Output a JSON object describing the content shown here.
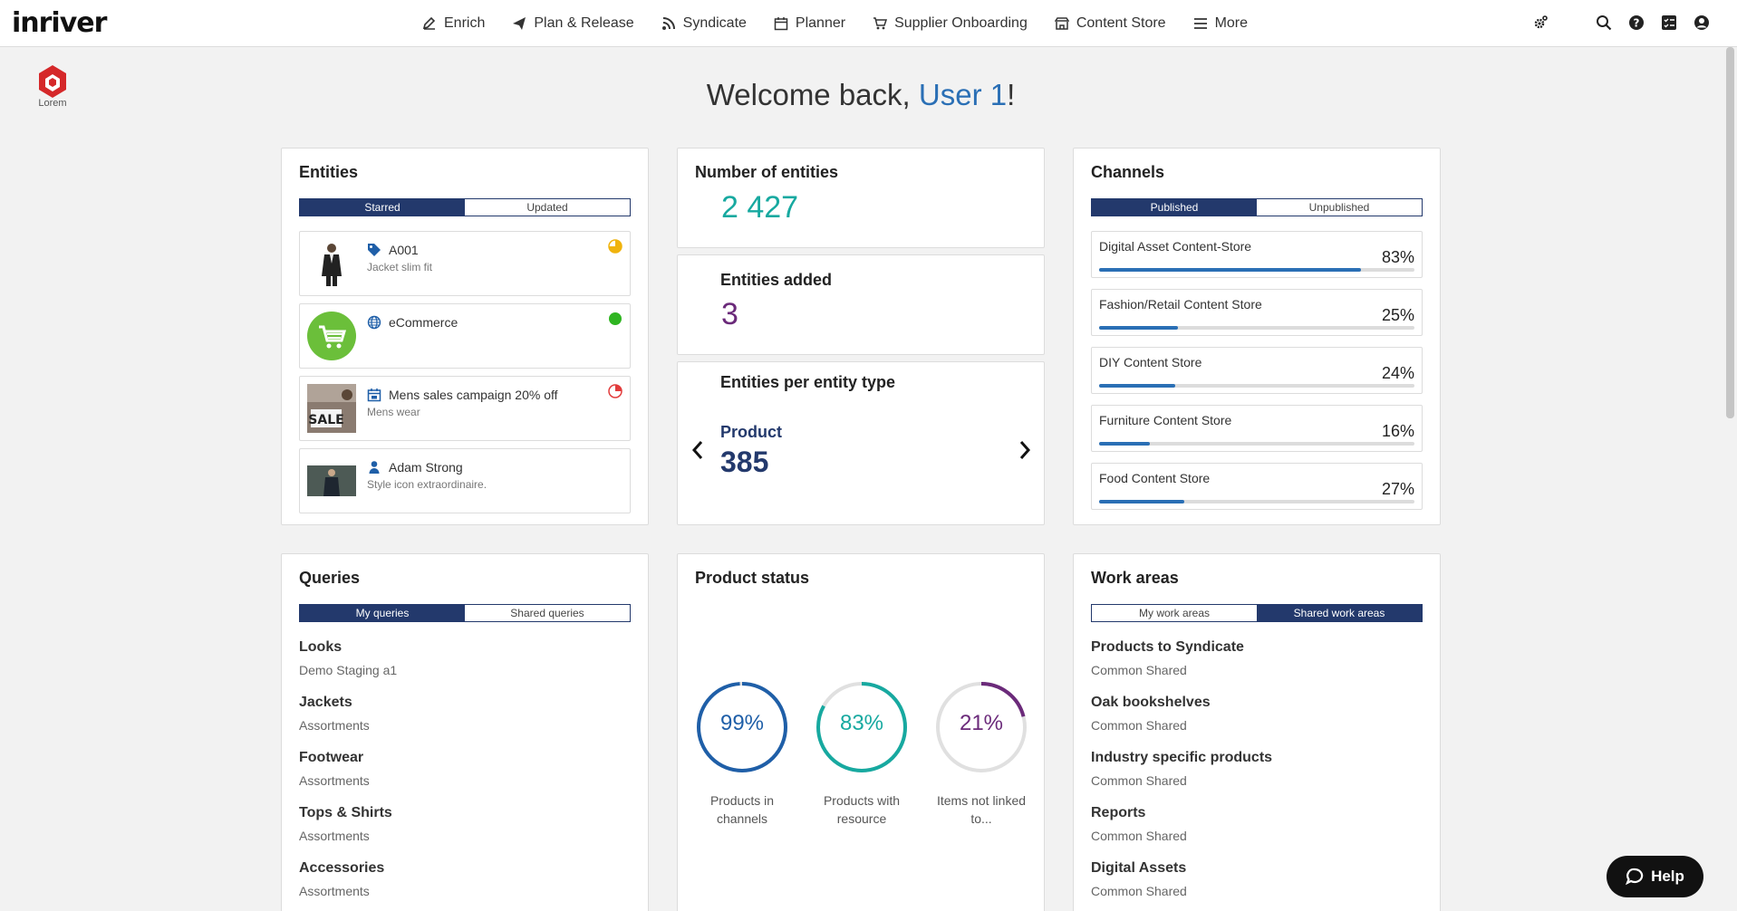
{
  "app": {
    "logo": "inriver"
  },
  "nav": [
    {
      "label": "Enrich",
      "icon": "edit-icon"
    },
    {
      "label": "Plan & Release",
      "icon": "paper-plane-icon"
    },
    {
      "label": "Syndicate",
      "icon": "rss-icon"
    },
    {
      "label": "Planner",
      "icon": "calendar-icon"
    },
    {
      "label": "Supplier Onboarding",
      "icon": "cart-icon"
    },
    {
      "label": "Content Store",
      "icon": "store-icon"
    },
    {
      "label": "More",
      "icon": "menu-icon"
    }
  ],
  "brand": {
    "label": "Lorem"
  },
  "welcome": {
    "prefix": "Welcome back, ",
    "user": "User 1",
    "suffix": "!"
  },
  "entities": {
    "title": "Entities",
    "tabs": [
      "Starred",
      "Updated"
    ],
    "items": [
      {
        "name": "A001",
        "sub": "Jacket slim fit",
        "icon": "tag-icon",
        "status": "partial-pie-icon"
      },
      {
        "name": "eCommerce",
        "sub": "",
        "icon": "globe-icon",
        "status": "green-dot-icon"
      },
      {
        "name": "Mens sales campaign 20% off",
        "sub": "Mens wear",
        "icon": "calendar-icon",
        "status": "red-pie-icon",
        "thumb": "SALE"
      },
      {
        "name": "Adam Strong",
        "sub": "Style icon extraordinaire.",
        "icon": "person-icon",
        "status": ""
      }
    ]
  },
  "stats": {
    "num_entities_label": "Number of entities",
    "num_entities": "2 427",
    "added_label": "Entities added",
    "added": "3",
    "per_type_label": "Entities per entity type",
    "per_type_name": "Product",
    "per_type_value": "385"
  },
  "channels": {
    "title": "Channels",
    "tabs": [
      "Published",
      "Unpublished"
    ],
    "items": [
      {
        "name": "Digital Asset Content-Store",
        "pct": "83%",
        "value": 0.83
      },
      {
        "name": "Fashion/Retail Content Store",
        "pct": "25%",
        "value": 0.25
      },
      {
        "name": "DIY Content Store",
        "pct": "24%",
        "value": 0.24
      },
      {
        "name": "Furniture Content Store",
        "pct": "16%",
        "value": 0.16
      },
      {
        "name": "Food Content Store",
        "pct": "27%",
        "value": 0.27
      }
    ]
  },
  "queries": {
    "title": "Queries",
    "tabs": [
      "My queries",
      "Shared queries"
    ],
    "items": [
      {
        "name": "Looks",
        "sub": "Demo Staging a1"
      },
      {
        "name": "Jackets",
        "sub": "Assortments"
      },
      {
        "name": "Footwear",
        "sub": "Assortments"
      },
      {
        "name": "Tops & Shirts",
        "sub": "Assortments"
      },
      {
        "name": "Accessories",
        "sub": "Assortments"
      }
    ]
  },
  "product_status": {
    "title": "Product status",
    "rings": [
      {
        "pct": "99%",
        "value": 0.99,
        "label": "Products in channels",
        "color": "#1f5fa8"
      },
      {
        "pct": "83%",
        "value": 0.83,
        "label": "Products with resource",
        "color": "#17a9a0"
      },
      {
        "pct": "21%",
        "value": 0.21,
        "label": "Items not linked to...",
        "color": "#6b2a7a"
      }
    ]
  },
  "work_areas": {
    "title": "Work areas",
    "tabs": [
      "My work areas",
      "Shared work areas"
    ],
    "items": [
      {
        "name": "Products to Syndicate",
        "sub": "Common Shared"
      },
      {
        "name": "Oak bookshelves",
        "sub": "Common Shared"
      },
      {
        "name": "Industry specific products",
        "sub": "Common Shared"
      },
      {
        "name": "Reports",
        "sub": "Common Shared"
      },
      {
        "name": "Digital Assets",
        "sub": "Common Shared"
      }
    ]
  },
  "help": {
    "label": "Help"
  }
}
